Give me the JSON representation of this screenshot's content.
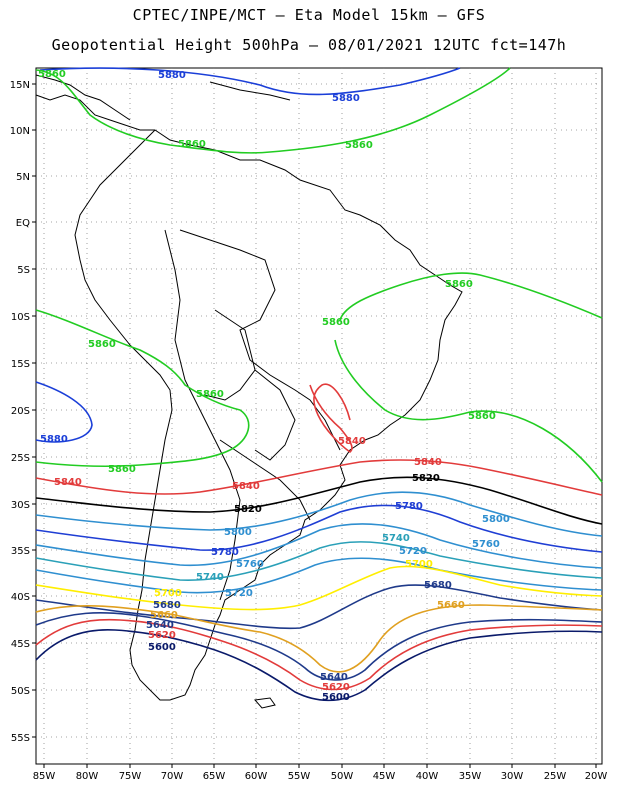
{
  "title_line1": "CPTEC/INPE/MCT –  Eta Model 15km – GFS",
  "title_line2": "Geopotential Height 500hPa – 08/01/2021 12UTC fct=147h",
  "axes": {
    "lat_labels": [
      "15N",
      "10N",
      "5N",
      "EQ",
      "5S",
      "10S",
      "15S",
      "20S",
      "25S",
      "30S",
      "35S",
      "40S",
      "45S",
      "50S",
      "55S"
    ],
    "lon_labels": [
      "85W",
      "80W",
      "75W",
      "70W",
      "65W",
      "60W",
      "55W",
      "50W",
      "45W",
      "40W",
      "35W",
      "30W",
      "25W",
      "20W"
    ]
  },
  "colors": {
    "c5880": "#1b3fd8",
    "c5860": "#22cc22",
    "c5840": "#e23b3b",
    "c5820": "#000000",
    "c5800": "#2f8fd0",
    "c5780": "#1f3ed4",
    "c5760": "#2f8fd0",
    "c5740": "#2aa0b8",
    "c5720": "#2f8fd0",
    "c5700": "#ffee00",
    "c5680": "#1f3a8a",
    "c5660": "#e0a020",
    "c5640": "#1f3a8a",
    "c5620": "#e23b3b",
    "c5600": "#0a1a6a"
  },
  "contour_labels": {
    "l5880a": "5880",
    "l5880b": "5880",
    "l5880c": "5880",
    "l5860a": "5860",
    "l5860b": "5860",
    "l5860c": "5860",
    "l5860d": "5860",
    "l5860e": "5860",
    "l5860f": "5860",
    "l5860g": "5860",
    "l5860h": "5860",
    "l5840a": "5840",
    "l5840b": "5840",
    "l5840c": "5840",
    "l5840d": "5840",
    "l5820a": "5820",
    "l5820b": "5820",
    "l5800a": "5800",
    "l5800b": "5800",
    "l5780a": "5780",
    "l5780b": "5780",
    "l5760a": "5760",
    "l5760b": "5760",
    "l5740a": "5740",
    "l5740b": "5740",
    "l5720a": "5720",
    "l5720b": "5720",
    "l5700a": "5700",
    "l5700b": "5700",
    "l5680a": "5680",
    "l5680b": "5680",
    "l5660a": "5660",
    "l5660b": "5660",
    "l5640a": "5640",
    "l5640b": "5640",
    "l5620a": "5620",
    "l5620b": "5620",
    "l5600a": "5600",
    "l5600b": "5600"
  }
}
